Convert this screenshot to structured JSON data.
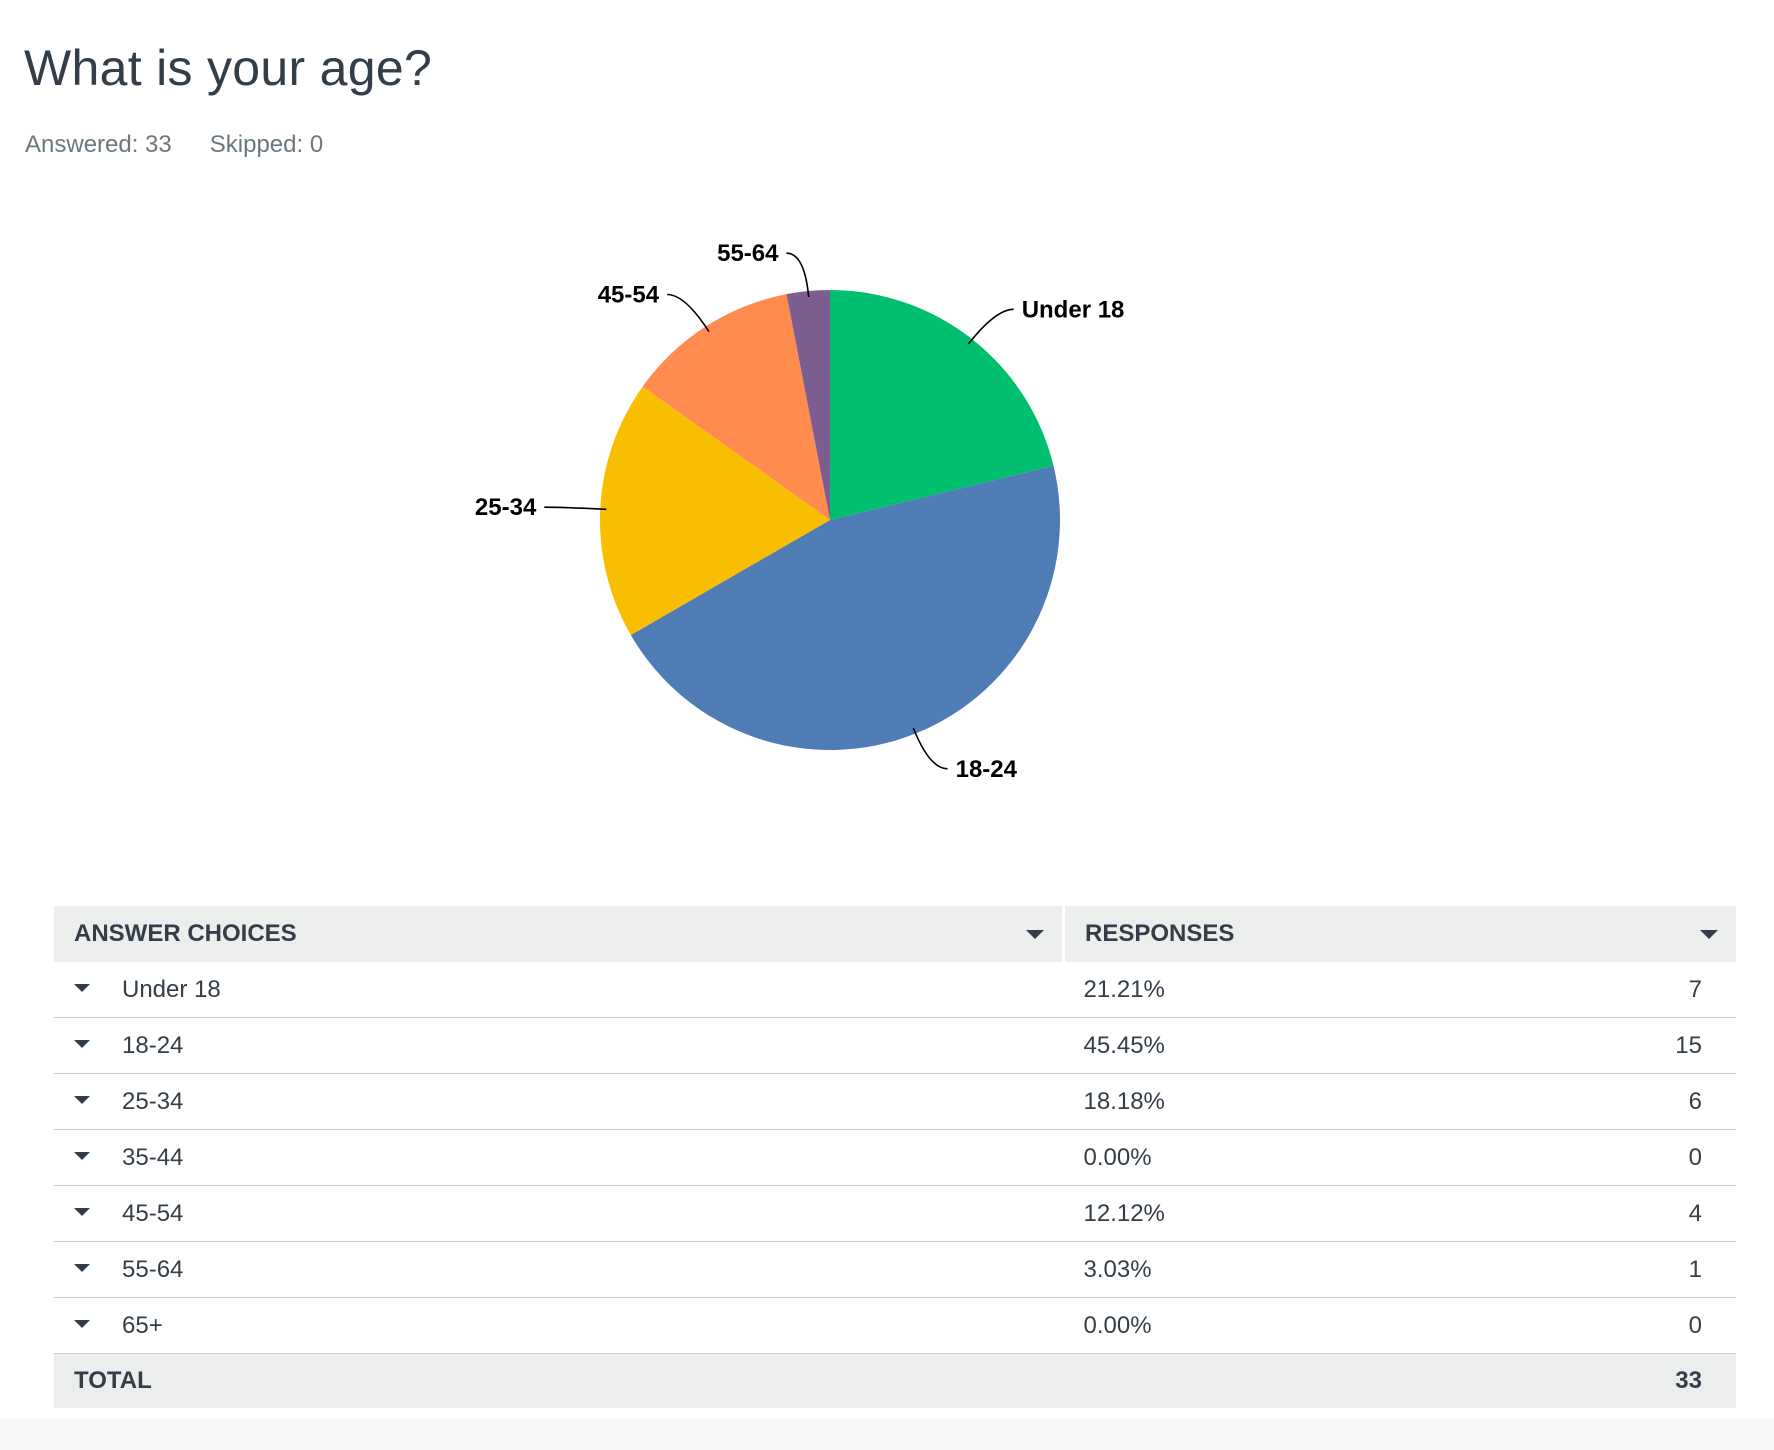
{
  "question": {
    "title": "What is your age?",
    "answered_label": "Answered: 33",
    "skipped_label": "Skipped: 0"
  },
  "chart_data": {
    "type": "pie",
    "slices": [
      {
        "label": "Under 18",
        "value": 7,
        "color": "#00bf6f"
      },
      {
        "label": "18-24",
        "value": 15,
        "color": "#507cb6"
      },
      {
        "label": "25-34",
        "value": 6,
        "color": "#f9be00"
      },
      {
        "label": "35-44",
        "value": 0,
        "color": "#6bc8cd"
      },
      {
        "label": "45-54",
        "value": 4,
        "color": "#ff8b4f"
      },
      {
        "label": "55-64",
        "value": 1,
        "color": "#7d5e90"
      },
      {
        "label": "65+",
        "value": 0,
        "color": "#d25f90"
      }
    ],
    "total": 33
  },
  "table": {
    "headers": {
      "choice": "ANSWER CHOICES",
      "responses": "RESPONSES"
    },
    "rows": [
      {
        "choice": "Under 18",
        "percent": "21.21%",
        "count": "7"
      },
      {
        "choice": "18-24",
        "percent": "45.45%",
        "count": "15"
      },
      {
        "choice": "25-34",
        "percent": "18.18%",
        "count": "6"
      },
      {
        "choice": "35-44",
        "percent": "0.00%",
        "count": "0"
      },
      {
        "choice": "45-54",
        "percent": "12.12%",
        "count": "4"
      },
      {
        "choice": "55-64",
        "percent": "3.03%",
        "count": "1"
      },
      {
        "choice": "65+",
        "percent": "0.00%",
        "count": "0"
      }
    ],
    "total_label": "TOTAL",
    "total_value": "33"
  }
}
